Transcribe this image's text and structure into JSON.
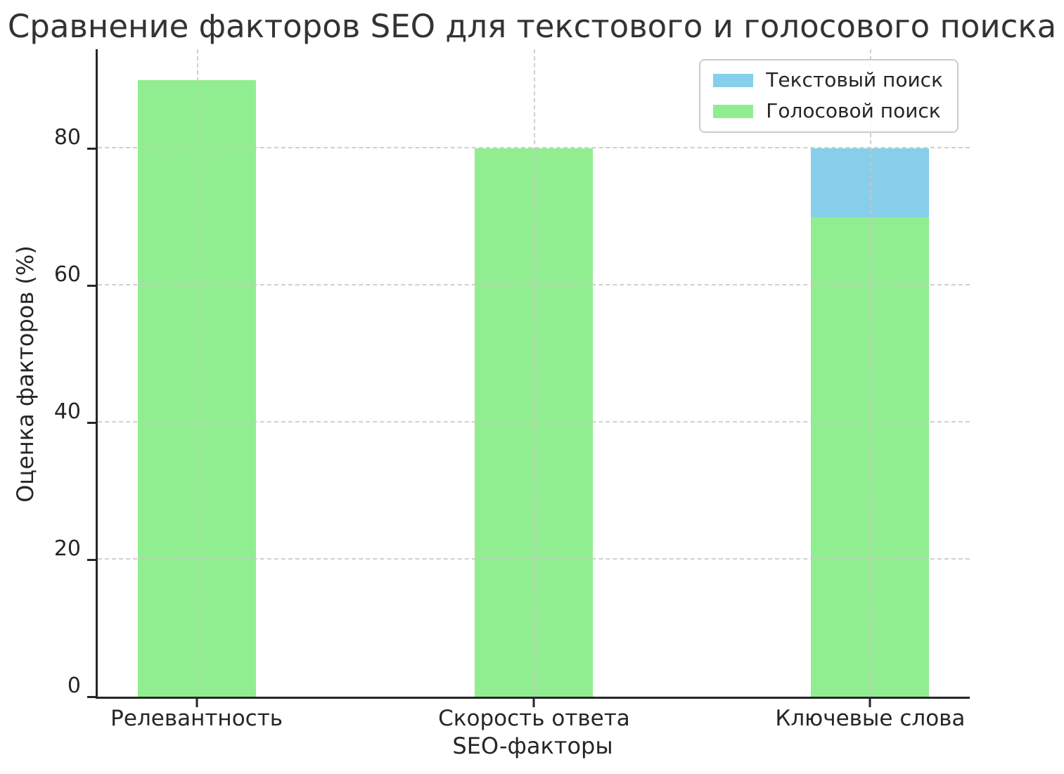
{
  "chart_data": {
    "type": "bar",
    "title": "Сравнение факторов SEO для текстового и голосового поиска",
    "xlabel": "SEO-факторы",
    "ylabel": "Оценка факторов (%)",
    "categories": [
      "Релевантность",
      "Скорость ответа",
      "Ключевые слова"
    ],
    "series": [
      {
        "name": "Текстовый поиск",
        "color": "#87CEEB",
        "values": [
          null,
          null,
          80
        ],
        "note": "bars for the first two categories are fully hidden behind the voice-search bars; only the 'Ключевые слова' bar top (80) is visible"
      },
      {
        "name": "Голосовой поиск",
        "color": "#90EE90",
        "values": [
          90,
          80,
          70
        ]
      }
    ],
    "yticks": [
      0,
      20,
      40,
      60,
      80
    ],
    "ylim": [
      0,
      94.5
    ],
    "grid": true,
    "grid_style": "dashed, drawn above bars",
    "legend_position": "upper right"
  },
  "colors": {
    "text_search": "#87CEEB",
    "voice_search": "#90EE90",
    "grid": "#c8c8c8",
    "spine": "#262626",
    "title_text": "#333333",
    "background": "#ffffff"
  }
}
